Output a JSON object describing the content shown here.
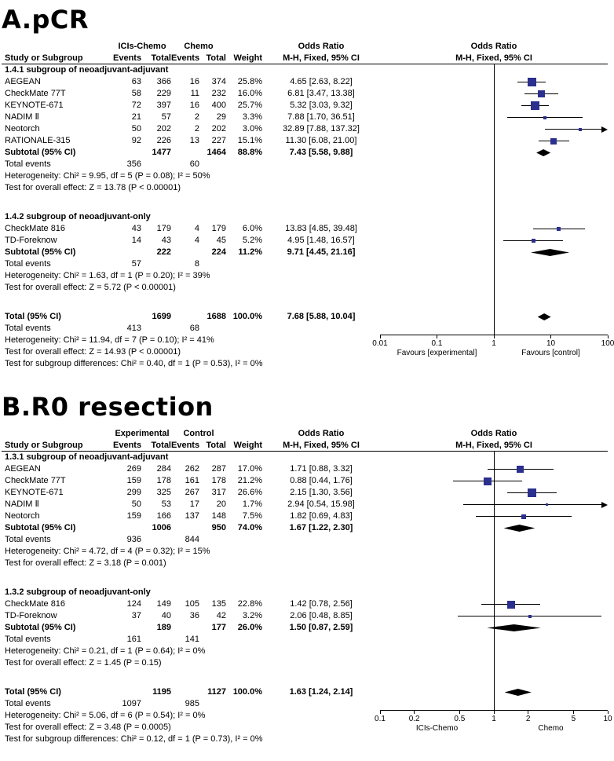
{
  "labels": {
    "total_events": "Total events"
  },
  "colors": {
    "marker_blue": "#2b2f8e",
    "summary_black": "#000000",
    "line_black": "#000000"
  },
  "chart_data": [
    {
      "type": "forest",
      "panel": "A",
      "title": "A.pCR",
      "effect_label": "Odds Ratio",
      "method_label": "M-H, Fixed, 95% CI",
      "group1_label": "ICIs-Chemo",
      "group2_label": "Chemo",
      "columns": {
        "study": "Study or Subgroup",
        "events": "Events",
        "total": "Total",
        "weight": "Weight"
      },
      "axis": {
        "scale": "log",
        "min": 0.01,
        "max": 100,
        "ticks": [
          "0.01",
          "0.1",
          "1",
          "10",
          "100"
        ],
        "left_label": "Favours [experimental]",
        "right_label": "Favours [control]"
      },
      "sections": [
        {
          "heading": "1.4.1 subgroup of neoadjuvant-adjuvant",
          "studies": [
            {
              "name": "AEGEAN",
              "e1": "63",
              "t1": "366",
              "e2": "16",
              "t2": "374",
              "weight": "25.8%",
              "weight_pct": 25.8,
              "ci_text": "4.65 [2.63, 8.22]",
              "or": 4.65,
              "lo": 2.63,
              "hi": 8.22
            },
            {
              "name": "CheckMate 77T",
              "e1": "58",
              "t1": "229",
              "e2": "11",
              "t2": "232",
              "weight": "16.0%",
              "weight_pct": 16.0,
              "ci_text": "6.81 [3.47, 13.38]",
              "or": 6.81,
              "lo": 3.47,
              "hi": 13.38
            },
            {
              "name": "KEYNOTE-671",
              "e1": "72",
              "t1": "397",
              "e2": "16",
              "t2": "400",
              "weight": "25.7%",
              "weight_pct": 25.7,
              "ci_text": "5.32 [3.03, 9.32]",
              "or": 5.32,
              "lo": 3.03,
              "hi": 9.32
            },
            {
              "name": "NADIM Ⅱ",
              "e1": "21",
              "t1": "57",
              "e2": "2",
              "t2": "29",
              "weight": "3.3%",
              "weight_pct": 3.3,
              "ci_text": "7.88 [1.70, 36.51]",
              "or": 7.88,
              "lo": 1.7,
              "hi": 36.51
            },
            {
              "name": "Neotorch",
              "e1": "50",
              "t1": "202",
              "e2": "2",
              "t2": "202",
              "weight": "3.0%",
              "weight_pct": 3.0,
              "ci_text": "32.89 [7.88, 137.32]",
              "or": 32.89,
              "lo": 7.88,
              "hi": 137.32
            },
            {
              "name": "RATIONALE-315",
              "e1": "92",
              "t1": "226",
              "e2": "13",
              "t2": "227",
              "weight": "15.1%",
              "weight_pct": 15.1,
              "ci_text": "11.30 [6.08, 21.00]",
              "or": 11.3,
              "lo": 6.08,
              "hi": 21.0
            }
          ],
          "subtotal": {
            "label": "Subtotal (95% CI)",
            "t1": "1477",
            "t2": "1464",
            "weight": "88.8%",
            "ci_text": "7.43 [5.58, 9.88]",
            "or": 7.43,
            "lo": 5.58,
            "hi": 9.88
          },
          "total_events": {
            "e1": "356",
            "e2": "60"
          },
          "heterogeneity": "Heterogeneity: Chi² = 9.95, df = 5 (P = 0.08); I² = 50%",
          "overall_effect": "Test for overall effect: Z = 13.78 (P < 0.00001)"
        },
        {
          "heading": "1.4.2 subgroup of neoadjuvant-only",
          "studies": [
            {
              "name": "CheckMate 816",
              "e1": "43",
              "t1": "179",
              "e2": "4",
              "t2": "179",
              "weight": "6.0%",
              "weight_pct": 6.0,
              "ci_text": "13.83 [4.85, 39.48]",
              "or": 13.83,
              "lo": 4.85,
              "hi": 39.48
            },
            {
              "name": "TD-Foreknow",
              "e1": "14",
              "t1": "43",
              "e2": "4",
              "t2": "45",
              "weight": "5.2%",
              "weight_pct": 5.2,
              "ci_text": "4.95 [1.48, 16.57]",
              "or": 4.95,
              "lo": 1.48,
              "hi": 16.57
            }
          ],
          "subtotal": {
            "label": "Subtotal (95% CI)",
            "t1": "222",
            "t2": "224",
            "weight": "11.2%",
            "ci_text": "9.71 [4.45, 21.16]",
            "or": 9.71,
            "lo": 4.45,
            "hi": 21.16
          },
          "total_events": {
            "e1": "57",
            "e2": "8"
          },
          "heterogeneity": "Heterogeneity: Chi² = 1.63, df = 1 (P = 0.20); I² = 39%",
          "overall_effect": "Test for overall effect: Z = 5.72 (P < 0.00001)"
        }
      ],
      "total": {
        "label": "Total (95% CI)",
        "t1": "1699",
        "t2": "1688",
        "weight": "100.0%",
        "ci_text": "7.68 [5.88, 10.04]",
        "or": 7.68,
        "lo": 5.88,
        "hi": 10.04,
        "total_events": {
          "e1": "413",
          "e2": "68"
        },
        "heterogeneity": "Heterogeneity: Chi² = 11.94, df = 7 (P = 0.10); I² = 41%",
        "overall_effect": "Test for overall effect: Z = 14.93 (P < 0.00001)",
        "subgroup_diff": "Test for subgroup differences: Chi² = 0.40, df = 1 (P = 0.53), I² = 0%"
      }
    },
    {
      "type": "forest",
      "panel": "B",
      "title": "B.R0 resection",
      "effect_label": "Odds Ratio",
      "method_label": "M-H, Fixed, 95% CI",
      "group1_label": "Experimental",
      "group2_label": "Control",
      "columns": {
        "study": "Study or Subgroup",
        "events": "Events",
        "total": "Total",
        "weight": "Weight"
      },
      "axis": {
        "scale": "log",
        "min": 0.1,
        "max": 10,
        "ticks": [
          "0.1",
          "0.2",
          "0.5",
          "1",
          "2",
          "5",
          "10"
        ],
        "left_label": "ICIs-Chemo",
        "right_label": "Chemo"
      },
      "sections": [
        {
          "heading": "1.3.1 subgroup of neoadjuvant-adjuvant",
          "studies": [
            {
              "name": "AEGEAN",
              "e1": "269",
              "t1": "284",
              "e2": "262",
              "t2": "287",
              "weight": "17.0%",
              "weight_pct": 17.0,
              "ci_text": "1.71 [0.88, 3.32]",
              "or": 1.71,
              "lo": 0.88,
              "hi": 3.32
            },
            {
              "name": "CheckMate 77T",
              "e1": "159",
              "t1": "178",
              "e2": "161",
              "t2": "178",
              "weight": "21.2%",
              "weight_pct": 21.2,
              "ci_text": "0.88 [0.44, 1.76]",
              "or": 0.88,
              "lo": 0.44,
              "hi": 1.76
            },
            {
              "name": "KEYNOTE-671",
              "e1": "299",
              "t1": "325",
              "e2": "267",
              "t2": "317",
              "weight": "26.6%",
              "weight_pct": 26.6,
              "ci_text": "2.15 [1.30, 3.56]",
              "or": 2.15,
              "lo": 1.3,
              "hi": 3.56
            },
            {
              "name": "NADIM Ⅱ",
              "e1": "50",
              "t1": "53",
              "e2": "17",
              "t2": "20",
              "weight": "1.7%",
              "weight_pct": 1.7,
              "ci_text": "2.94 [0.54, 15.98]",
              "or": 2.94,
              "lo": 0.54,
              "hi": 15.98
            },
            {
              "name": "Neotorch",
              "e1": "159",
              "t1": "166",
              "e2": "137",
              "t2": "148",
              "weight": "7.5%",
              "weight_pct": 7.5,
              "ci_text": "1.82 [0.69, 4.83]",
              "or": 1.82,
              "lo": 0.69,
              "hi": 4.83
            }
          ],
          "subtotal": {
            "label": "Subtotal (95% CI)",
            "t1": "1006",
            "t2": "950",
            "weight": "74.0%",
            "ci_text": "1.67 [1.22, 2.30]",
            "or": 1.67,
            "lo": 1.22,
            "hi": 2.3
          },
          "total_events": {
            "e1": "936",
            "e2": "844"
          },
          "heterogeneity": "Heterogeneity: Chi² = 4.72, df = 4 (P = 0.32); I² = 15%",
          "overall_effect": "Test for overall effect: Z = 3.18 (P = 0.001)"
        },
        {
          "heading": "1.3.2 subgroup of neoadjuvant-only",
          "studies": [
            {
              "name": "CheckMate 816",
              "e1": "124",
              "t1": "149",
              "e2": "105",
              "t2": "135",
              "weight": "22.8%",
              "weight_pct": 22.8,
              "ci_text": "1.42 [0.78, 2.56]",
              "or": 1.42,
              "lo": 0.78,
              "hi": 2.56
            },
            {
              "name": "TD-Foreknow",
              "e1": "37",
              "t1": "40",
              "e2": "36",
              "t2": "42",
              "weight": "3.2%",
              "weight_pct": 3.2,
              "ci_text": "2.06 [0.48, 8.85]",
              "or": 2.06,
              "lo": 0.48,
              "hi": 8.85
            }
          ],
          "subtotal": {
            "label": "Subtotal (95% CI)",
            "t1": "189",
            "t2": "177",
            "weight": "26.0%",
            "ci_text": "1.50 [0.87, 2.59]",
            "or": 1.5,
            "lo": 0.87,
            "hi": 2.59
          },
          "total_events": {
            "e1": "161",
            "e2": "141"
          },
          "heterogeneity": "Heterogeneity: Chi² = 0.21, df = 1 (P = 0.64); I² = 0%",
          "overall_effect": "Test for overall effect: Z = 1.45 (P = 0.15)"
        }
      ],
      "total": {
        "label": "Total (95% CI)",
        "t1": "1195",
        "t2": "1127",
        "weight": "100.0%",
        "ci_text": "1.63 [1.24, 2.14]",
        "or": 1.63,
        "lo": 1.24,
        "hi": 2.14,
        "total_events": {
          "e1": "1097",
          "e2": "985"
        },
        "heterogeneity": "Heterogeneity: Chi² = 5.06, df = 6 (P = 0.54); I² = 0%",
        "overall_effect": "Test for overall effect: Z = 3.48 (P = 0.0005)",
        "subgroup_diff": "Test for subgroup differences: Chi² = 0.12, df = 1 (P = 0.73), I² = 0%"
      }
    }
  ]
}
